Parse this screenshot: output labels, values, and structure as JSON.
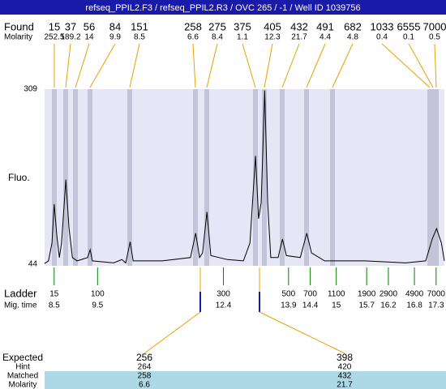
{
  "header": {
    "title": "refseq_PPIL2.F3 / refseq_PPIL2.R3 / OVC 265 / -1 / Well ID 1039756"
  },
  "found": {
    "label": "Found",
    "sub_label": "Molarity",
    "sizes": [
      15,
      37,
      56,
      84,
      151,
      258,
      275,
      375,
      405,
      432,
      491,
      682,
      1033,
      6555,
      7000
    ],
    "molarity": [
      252.5,
      189.2,
      14,
      9.9,
      8.5,
      6.6,
      8.4,
      1.1,
      12.3,
      21.7,
      4.4,
      4.8,
      0.4,
      0.1,
      0.5
    ]
  },
  "chart_data": {
    "type": "line",
    "ylabel": "Fluo.",
    "color": "#000000",
    "x": [
      8.28,
      8.37,
      8.45,
      8.5,
      8.56,
      8.62,
      8.67,
      8.77,
      8.84,
      8.92,
      9.03,
      9.27,
      9.33,
      9.38,
      9.87,
      10.06,
      10.15,
      10.25,
      10.32,
      10.99,
      11.64,
      11.76,
      11.85,
      11.92,
      12.02,
      12.11,
      12.49,
      12.86,
      13.01,
      13.14,
      13.21,
      13.27,
      13.35,
      13.42,
      13.49,
      13.66,
      13.76,
      13.85,
      14.17,
      14.32,
      14.43,
      14.73,
      15.66,
      16.6,
      17.06,
      17.21,
      17.31,
      17.42,
      17.49
    ],
    "values": [
      45,
      49,
      76,
      135,
      88,
      54,
      76,
      172,
      100,
      54,
      49,
      54,
      66,
      49,
      46,
      51,
      46,
      78,
      49,
      49,
      54,
      91,
      54,
      61,
      123,
      57,
      51,
      49,
      76,
      208,
      113,
      137,
      307,
      137,
      54,
      54,
      82,
      57,
      54,
      91,
      61,
      49,
      49,
      46,
      49,
      82,
      98,
      76,
      49
    ],
    "xlim": [
      8.28,
      17.49
    ],
    "ylim": [
      44,
      309
    ],
    "yticks": [
      44,
      309
    ]
  },
  "ladder": {
    "label": "Ladder",
    "sub_label": "Mig. time",
    "sizes": [
      15,
      100,
      300,
      500,
      700,
      1100,
      1900,
      2900,
      4900,
      7000
    ],
    "times": [
      8.5,
      9.5,
      12.4,
      13.9,
      14.4,
      15,
      15.7,
      16.2,
      16.8,
      17.3
    ]
  },
  "expected": {
    "label": "Expected",
    "row_labels": [
      "Hint",
      "Matched",
      "Molarity"
    ],
    "peaks": [
      {
        "size": 256,
        "hint": 264,
        "matched": 258,
        "molarity": 6.6
      },
      {
        "size": 398,
        "hint": 420,
        "matched": 432,
        "molarity": 21.7
      }
    ]
  }
}
